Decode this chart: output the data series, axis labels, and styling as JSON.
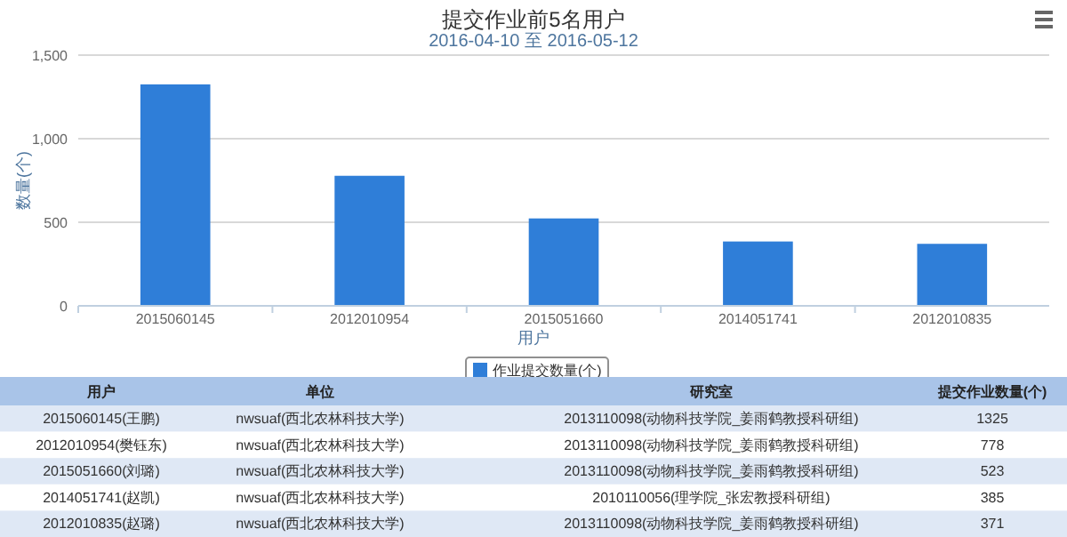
{
  "chart_data": {
    "type": "bar",
    "title": "提交作业前5名用户",
    "subtitle": "2016-04-10 至 2016-05-12",
    "xlabel": "用户",
    "ylabel": "数量(个)",
    "categories": [
      "2015060145",
      "2012010954",
      "2015051660",
      "2014051741",
      "2012010835"
    ],
    "series": [
      {
        "name": "作业提交数量(个)",
        "color": "#2f7ed8",
        "values": [
          1325,
          778,
          523,
          385,
          371
        ]
      }
    ],
    "ylim": [
      0,
      1500
    ],
    "yticks": [
      0,
      500,
      {
        "value": 1000,
        "label": "1,000"
      },
      {
        "value": 1500,
        "label": "1,500"
      }
    ],
    "grid": "y",
    "legend": "bottom",
    "annotations": [
      "用户",
      "单位",
      "研究室",
      "提交作业数量(个)",
      "2015060145(王鹏)",
      "nwsuaf(西北农林科技大学)",
      "2013110098(动物科技学院_姜雨鹤教授科研组)",
      "1325",
      "2012010954(樊钰东)",
      "nwsuaf(西北农林科技大学)",
      "2013110098(动物科技学院_姜雨鹤教授科研组)",
      "778",
      "2015051660(刘璐)",
      "nwsuaf(西北农林科技大学)",
      "2013110098(动物科技学院_姜雨鹤教授科研组)",
      "523",
      "2014051741(赵凯)",
      "nwsuaf(西北农林科技大学)",
      "2010110056(理学院_张宏教授科研组)",
      "385",
      "2012010835(赵璐)",
      "nwsuaf(西北农林科技大学)",
      "2013110098(动物科技学院_姜雨鹤教授科研组)",
      "371"
    ]
  }
}
